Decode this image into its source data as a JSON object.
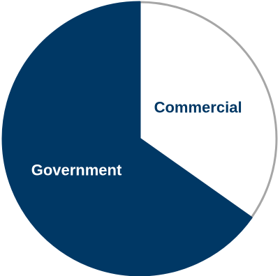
{
  "chart_data": {
    "type": "pie",
    "slices": [
      {
        "label": "Commercial",
        "value": 34.8,
        "color": "#ffffff",
        "stroke": "#a6a6a6",
        "label_color": "#003865"
      },
      {
        "label": "Government",
        "value": 65.2,
        "color": "#003865",
        "stroke": "#003865",
        "label_color": "#ffffff"
      }
    ],
    "start_angle_deg": 0,
    "direction": "clockwise",
    "legend": "none"
  }
}
